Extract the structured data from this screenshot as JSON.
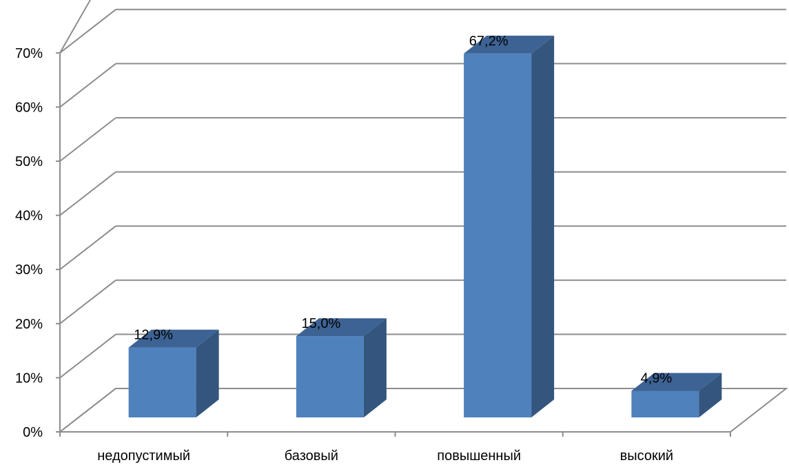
{
  "chart_data": {
    "type": "bar",
    "style": "3d-column",
    "categories": [
      "недопустимый",
      "базовый",
      "повышенный",
      "высокий"
    ],
    "values": [
      12.9,
      15.0,
      67.2,
      4.9
    ],
    "data_labels": [
      "12,9%",
      "15,0%",
      "67,2%",
      "4,9%"
    ],
    "y_ticks": [
      "0%",
      "10%",
      "20%",
      "30%",
      "40%",
      "50%",
      "60%",
      "70%"
    ],
    "ylim": [
      0,
      70
    ],
    "grid": true,
    "legend": "none",
    "colors": {
      "bar_front": "#4f81bd",
      "bar_side": "#34567e",
      "bar_top": "#3d6394",
      "grid": "#8c8c8c",
      "axis": "#8c8c8c"
    }
  }
}
